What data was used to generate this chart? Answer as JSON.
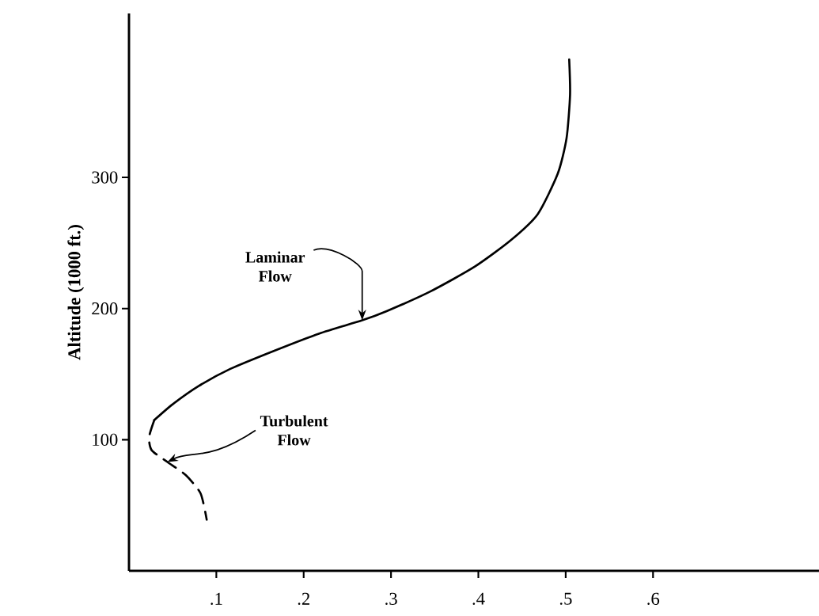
{
  "chart_data": {
    "type": "line",
    "ylabel": "Altitude (1000 ft.)",
    "xlim": [
      0,
      0.79
    ],
    "ylim": [
      0,
      425
    ],
    "xticks": [
      {
        "value": 0.1,
        "label": ".1"
      },
      {
        "value": 0.2,
        "label": ".2"
      },
      {
        "value": 0.3,
        "label": ".3"
      },
      {
        "value": 0.4,
        "label": ".4"
      },
      {
        "value": 0.5,
        "label": ".5"
      },
      {
        "value": 0.6,
        "label": ".6"
      }
    ],
    "yticks": [
      100,
      200,
      300
    ],
    "series": [
      {
        "color": "#000000",
        "line_style": "solid",
        "x": [
          0.504,
          0.505,
          0.501,
          0.491,
          0.468,
          0.437,
          0.396,
          0.345,
          0.295,
          0.267,
          0.218,
          0.167,
          0.116,
          0.08,
          0.05,
          0.029
        ],
        "values": [
          390,
          363,
          330,
          303,
          272,
          252,
          232,
          213,
          198,
          191,
          181,
          168,
          154,
          141,
          127,
          115
        ]
      },
      {
        "color": "#000000",
        "line_style": "dashed",
        "x": [
          0.029,
          0.023,
          0.026,
          0.044,
          0.065,
          0.082,
          0.089
        ],
        "values": [
          115,
          102,
          92,
          83,
          73,
          59,
          39
        ]
      }
    ],
    "annotations": [
      {
        "text": "Laminar Flow",
        "x": 0.267,
        "y": 191
      },
      {
        "text": "Turbulent Flow",
        "x": 0.044,
        "y": 83
      }
    ]
  }
}
